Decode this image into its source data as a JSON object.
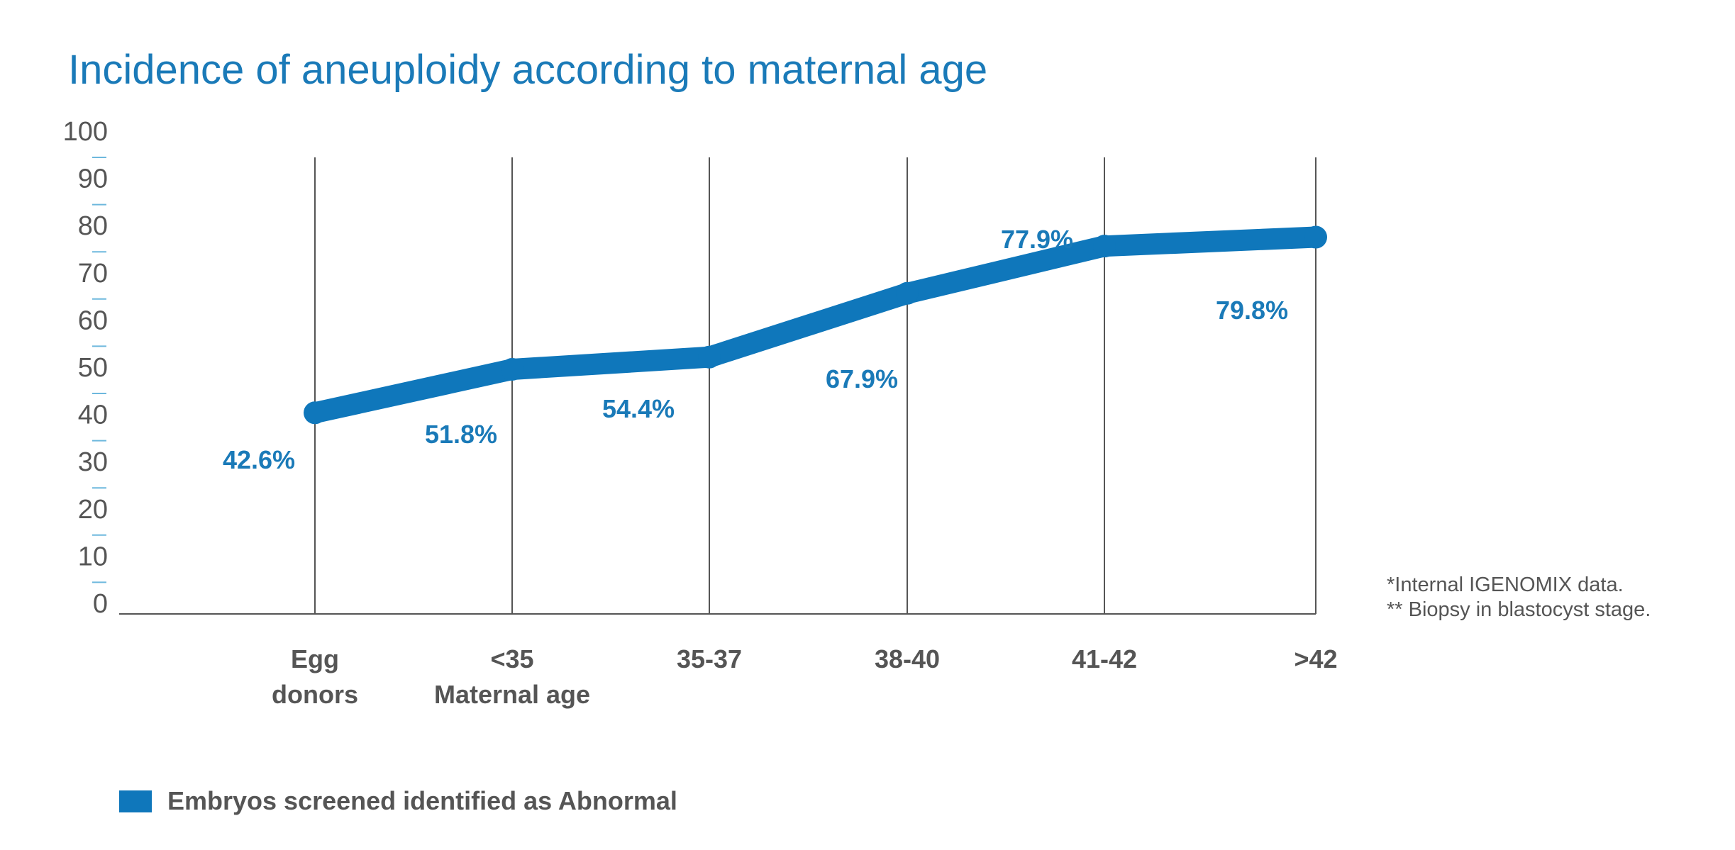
{
  "colors": {
    "title": "#1a7ab8",
    "line": "#0f77bb",
    "label": "#1a7ab8",
    "axis_text": "#555555",
    "tick_mark": "#6db8dd",
    "gridline": "#555555",
    "category_text": "#555555"
  },
  "notes": [
    "*Internal IGENOMIX data.",
    "** Biopsy in blastocyst stage."
  ],
  "chart_data": {
    "type": "line",
    "title": "Incidence of aneuploidy according to maternal age",
    "categories": [
      [
        "Egg",
        "donors"
      ],
      [
        "<35",
        "Maternal age"
      ],
      [
        "35-37"
      ],
      [
        "38-40"
      ],
      [
        "41-42"
      ],
      [
        ">42"
      ]
    ],
    "series": [
      {
        "name": "Embryos screened identified as Abnormal",
        "values": [
          42.6,
          51.8,
          54.4,
          67.9,
          77.9,
          79.8
        ],
        "labels": [
          "42.6%",
          "51.8%",
          "54.4%",
          "67.9%",
          "77.9%",
          "79.8%"
        ]
      }
    ],
    "ylim": [
      0,
      100
    ],
    "yticks": [
      0,
      10,
      20,
      30,
      40,
      50,
      60,
      70,
      80,
      90,
      100
    ],
    "grid": "vertical-at-categories",
    "legend": "bottom-left"
  }
}
